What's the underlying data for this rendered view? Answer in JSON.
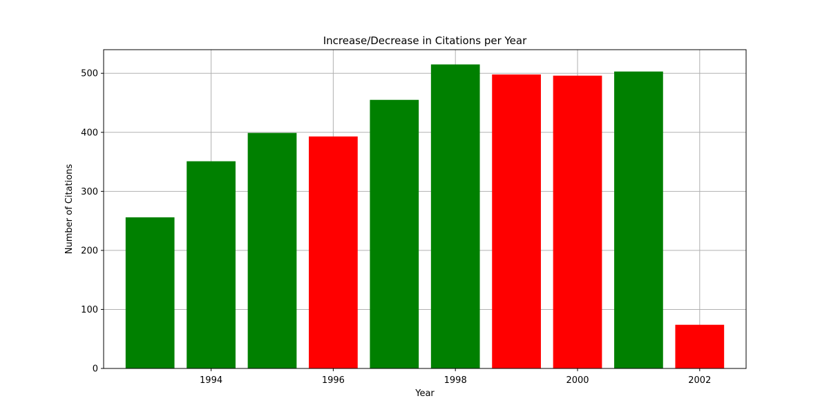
{
  "chart_data": {
    "type": "bar",
    "title": "Increase/Decrease in Citations per Year",
    "xlabel": "Year",
    "ylabel": "Number of Citations",
    "x": [
      1993,
      1994,
      1995,
      1996,
      1997,
      1998,
      1999,
      2000,
      2001,
      2002
    ],
    "values": [
      256,
      351,
      399,
      393,
      455,
      515,
      498,
      496,
      503,
      74
    ],
    "bar_colors": [
      "#008000",
      "#008000",
      "#008000",
      "#ff0000",
      "#008000",
      "#008000",
      "#ff0000",
      "#ff0000",
      "#008000",
      "#ff0000"
    ],
    "xlim": [
      1992.24,
      2002.76
    ],
    "ylim": [
      0,
      540
    ],
    "xticks": [
      "1994",
      "1996",
      "1998",
      "2000",
      "2002"
    ],
    "yticks": [
      "0",
      "100",
      "200",
      "300",
      "400",
      "500"
    ],
    "grid": true,
    "legend": false,
    "colors": {
      "increase": "#008000",
      "decrease": "#ff0000",
      "grid": "#b0b0b0"
    }
  }
}
